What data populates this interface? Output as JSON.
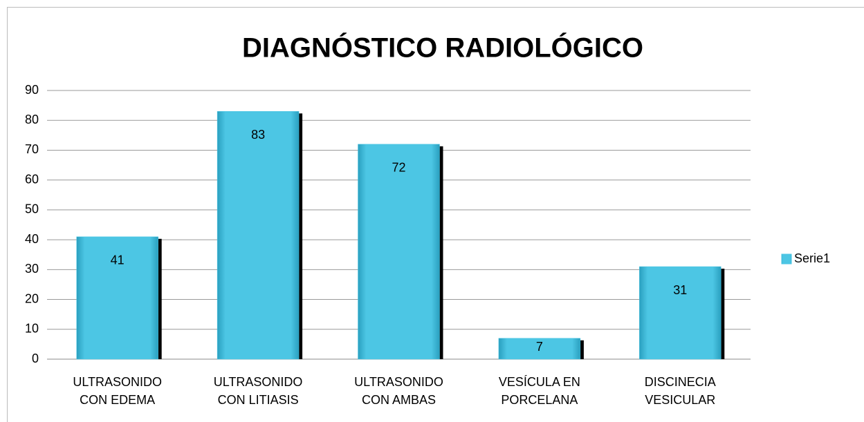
{
  "chart_data": {
    "type": "bar",
    "title": "DIAGNÓSTICO RADIOLÓGICO",
    "categories": [
      "ULTRASONIDO CON EDEMA",
      "ULTRASONIDO CON LITIASIS",
      "ULTRASONIDO CON AMBAS",
      "VESÍCULA EN PORCELANA",
      "DISCINECIA VESICULAR"
    ],
    "series": [
      {
        "name": "Serie1",
        "color": "#4cc6e4",
        "values": [
          41,
          83,
          72,
          7,
          31
        ]
      }
    ],
    "ylim": [
      0,
      90
    ],
    "yticks": [
      0,
      10,
      20,
      30,
      40,
      50,
      60,
      70,
      80,
      90
    ],
    "grid": true,
    "legend": "right"
  }
}
